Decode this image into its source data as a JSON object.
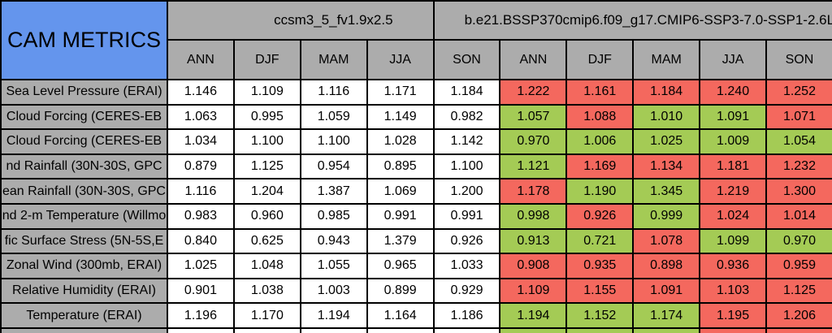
{
  "page": {
    "title": "CAM METRICS"
  },
  "models": {
    "model1": "ccsm3_5_fv1.9x2.5",
    "model2": "b.e21.BSSP370cmip6.f09_g17.CMIP6-SSP3-7.0-SSP1-2.6L"
  },
  "seasons": [
    "ANN",
    "DJF",
    "MAM",
    "JJA",
    "SON"
  ],
  "colors": {
    "blue": "#6495ED",
    "gray": "#ACACAC",
    "white": "#FFFFFF",
    "red": "#F4685E",
    "green": "#A4CB55"
  },
  "rows": [
    {
      "label": "Sea Level Pressure (ERAI)",
      "model1_values": [
        "1.146",
        "1.109",
        "1.116",
        "1.171",
        "1.184"
      ],
      "model2_values": [
        "1.222",
        "1.161",
        "1.184",
        "1.240",
        "1.252"
      ],
      "model2_colors": [
        "red",
        "red",
        "red",
        "red",
        "red"
      ]
    },
    {
      "label": "Cloud Forcing (CERES-EB",
      "model1_values": [
        "1.063",
        "0.995",
        "1.059",
        "1.149",
        "0.982"
      ],
      "model2_values": [
        "1.057",
        "1.088",
        "1.010",
        "1.091",
        "1.071"
      ],
      "model2_colors": [
        "green",
        "red",
        "green",
        "green",
        "red"
      ]
    },
    {
      "label": "Cloud Forcing (CERES-EB",
      "model1_values": [
        "1.034",
        "1.100",
        "1.100",
        "1.028",
        "1.142"
      ],
      "model2_values": [
        "0.970",
        "1.006",
        "1.025",
        "1.009",
        "1.054"
      ],
      "model2_colors": [
        "green",
        "green",
        "green",
        "green",
        "green"
      ]
    },
    {
      "label": "nd Rainfall (30N-30S, GPC",
      "model1_values": [
        "0.879",
        "1.125",
        "0.954",
        "0.895",
        "1.100"
      ],
      "model2_values": [
        "1.121",
        "1.169",
        "1.134",
        "1.181",
        "1.232"
      ],
      "model2_colors": [
        "green",
        "red",
        "red",
        "red",
        "red"
      ]
    },
    {
      "label": "ean Rainfall (30N-30S, GPC",
      "model1_values": [
        "1.116",
        "1.204",
        "1.387",
        "1.069",
        "1.200"
      ],
      "model2_values": [
        "1.178",
        "1.190",
        "1.345",
        "1.219",
        "1.300"
      ],
      "model2_colors": [
        "red",
        "green",
        "green",
        "red",
        "red"
      ]
    },
    {
      "label": "nd 2-m Temperature (Willmo",
      "model1_values": [
        "0.983",
        "0.960",
        "0.985",
        "0.991",
        "0.991"
      ],
      "model2_values": [
        "0.998",
        "0.926",
        "0.999",
        "1.024",
        "1.014"
      ],
      "model2_colors": [
        "green",
        "red",
        "green",
        "red",
        "red"
      ]
    },
    {
      "label": "fic Surface Stress (5N-5S,E",
      "model1_values": [
        "0.840",
        "0.625",
        "0.943",
        "1.379",
        "0.926"
      ],
      "model2_values": [
        "0.913",
        "0.721",
        "1.078",
        "1.099",
        "0.970"
      ],
      "model2_colors": [
        "green",
        "green",
        "red",
        "green",
        "green"
      ]
    },
    {
      "label": "Zonal Wind (300mb, ERAI)",
      "model1_values": [
        "1.025",
        "1.048",
        "1.055",
        "0.965",
        "1.033"
      ],
      "model2_values": [
        "0.908",
        "0.935",
        "0.898",
        "0.936",
        "0.959"
      ],
      "model2_colors": [
        "red",
        "red",
        "red",
        "red",
        "red"
      ]
    },
    {
      "label": "Relative Humidity (ERAI)",
      "model1_values": [
        "0.901",
        "1.038",
        "1.003",
        "0.899",
        "0.929"
      ],
      "model2_values": [
        "1.109",
        "1.155",
        "1.091",
        "1.103",
        "1.125"
      ],
      "model2_colors": [
        "red",
        "red",
        "red",
        "red",
        "red"
      ]
    },
    {
      "label": "Temperature (ERAI)",
      "model1_values": [
        "1.196",
        "1.170",
        "1.194",
        "1.164",
        "1.186"
      ],
      "model2_values": [
        "1.194",
        "1.152",
        "1.174",
        "1.195",
        "1.206"
      ],
      "model2_colors": [
        "green",
        "green",
        "green",
        "red",
        "red"
      ]
    }
  ],
  "partial_row": {
    "model1_colors": [
      "white",
      "white",
      "white",
      "white",
      "white"
    ],
    "model2_colors": [
      "green",
      "green",
      "green",
      "red",
      "red"
    ]
  }
}
